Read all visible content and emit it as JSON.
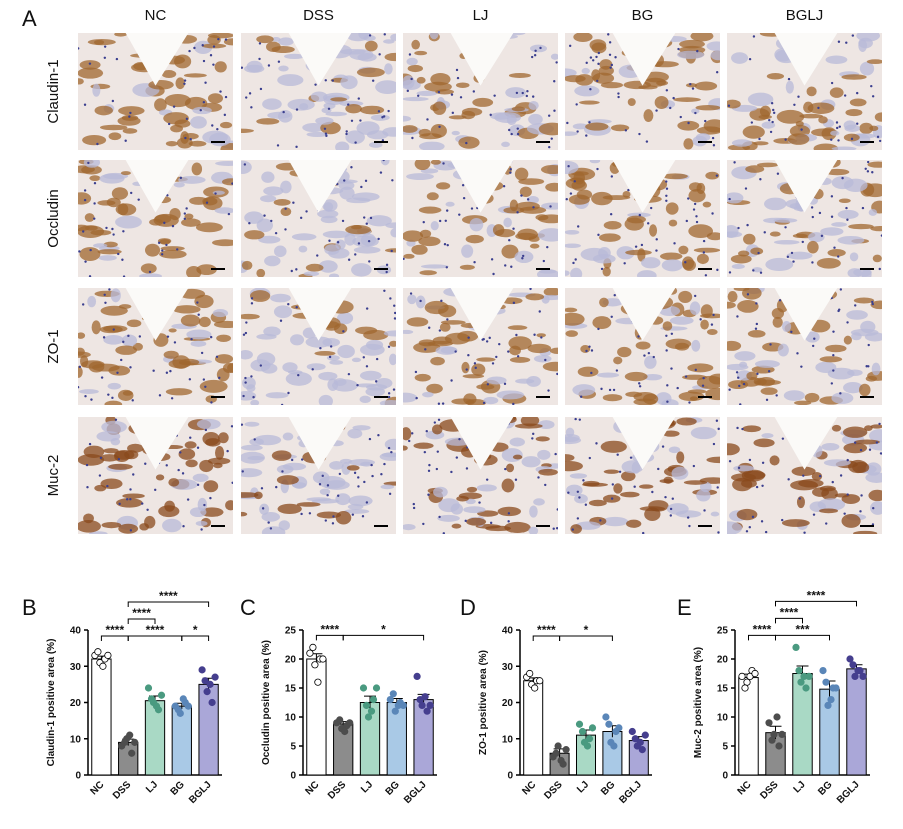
{
  "panel_a": {
    "label": "A",
    "columns": [
      "NC",
      "DSS",
      "LJ",
      "BG",
      "BGLJ"
    ],
    "rows": [
      "Claudin-1",
      "Occludin",
      "ZO-1",
      "Muc-2"
    ]
  },
  "chart_data": [
    {
      "type": "bar",
      "label": "B",
      "ylabel": "Claudin-1 positive area (%)",
      "categories": [
        "NC",
        "DSS",
        "LJ",
        "BG",
        "BGLJ"
      ],
      "values": [
        32,
        9,
        20.5,
        19,
        25
      ],
      "errors": [
        0.8,
        0.9,
        1.3,
        0.8,
        1.7
      ],
      "points": [
        [
          33,
          31,
          32,
          34,
          30,
          33
        ],
        [
          8,
          10,
          6,
          9,
          11,
          9
        ],
        [
          24,
          20,
          18,
          21,
          19,
          22
        ],
        [
          19,
          17,
          20,
          18,
          21,
          19
        ],
        [
          29,
          23,
          20,
          26,
          25,
          27
        ]
      ],
      "colors": [
        "#ffffff",
        "#8c8c8c",
        "#a9d9c5",
        "#a9c9e6",
        "#aaa7d8"
      ],
      "point_colors": [
        "#ffffff",
        "#4d4d4d",
        "#4a9a80",
        "#5a86b8",
        "#453e8e"
      ],
      "ylim": [
        0,
        40
      ],
      "yticks": [
        0,
        10,
        20,
        30,
        40
      ],
      "annotations": [
        {
          "text": "****",
          "from": 0,
          "to": 1
        },
        {
          "text": "****",
          "from": 1,
          "to": 3
        },
        {
          "text": "*",
          "from": 3,
          "to": 4
        },
        {
          "text": "****",
          "from": 1,
          "to": 2
        },
        {
          "text": "****",
          "from": 1,
          "to": 4
        }
      ]
    },
    {
      "type": "bar",
      "label": "C",
      "ylabel": "Occludin positive area (%)",
      "categories": [
        "NC",
        "DSS",
        "LJ",
        "BG",
        "BGLJ"
      ],
      "values": [
        20,
        8.8,
        12.5,
        12.5,
        13
      ],
      "errors": [
        0.9,
        0.4,
        1.1,
        0.7,
        0.9
      ],
      "points": [
        [
          21,
          19,
          20,
          22,
          16,
          20
        ],
        [
          9,
          8,
          8.5,
          9.5,
          7.5,
          9
        ],
        [
          15,
          10,
          13,
          12,
          11,
          15
        ],
        [
          13,
          11,
          12.5,
          14,
          12,
          12
        ],
        [
          17,
          12,
          11,
          13,
          13.5,
          12
        ]
      ],
      "colors": [
        "#ffffff",
        "#8c8c8c",
        "#a9d9c5",
        "#a9c9e6",
        "#aaa7d8"
      ],
      "point_colors": [
        "#ffffff",
        "#4d4d4d",
        "#4a9a80",
        "#5a86b8",
        "#453e8e"
      ],
      "ylim": [
        0,
        25
      ],
      "yticks": [
        0,
        5,
        10,
        15,
        20,
        25
      ],
      "annotations": [
        {
          "text": "****",
          "from": 0,
          "to": 1
        },
        {
          "text": "*",
          "from": 1,
          "to": 4
        }
      ]
    },
    {
      "type": "bar",
      "label": "D",
      "ylabel": "ZO-1 positive area (%)",
      "categories": [
        "NC",
        "DSS",
        "LJ",
        "BG",
        "BGLJ"
      ],
      "values": [
        26,
        6,
        11,
        12,
        9.5
      ],
      "errors": [
        0.8,
        1.2,
        1.4,
        1.6,
        1.1
      ],
      "points": [
        [
          27,
          25,
          26,
          28,
          24,
          26
        ],
        [
          5,
          8,
          3,
          6,
          4,
          7
        ],
        [
          14,
          9,
          10,
          12,
          8,
          13
        ],
        [
          16,
          9,
          12,
          14,
          8,
          13
        ],
        [
          12,
          8,
          7,
          10,
          9,
          11
        ]
      ],
      "colors": [
        "#ffffff",
        "#8c8c8c",
        "#a9d9c5",
        "#a9c9e6",
        "#aaa7d8"
      ],
      "point_colors": [
        "#ffffff",
        "#4d4d4d",
        "#4a9a80",
        "#5a86b8",
        "#453e8e"
      ],
      "ylim": [
        0,
        40
      ],
      "yticks": [
        0,
        10,
        20,
        30,
        40
      ],
      "annotations": [
        {
          "text": "****",
          "from": 0,
          "to": 1
        },
        {
          "text": "*",
          "from": 1,
          "to": 3
        }
      ]
    },
    {
      "type": "bar",
      "label": "E",
      "ylabel": "Muc-2 positive area (%)",
      "categories": [
        "NC",
        "DSS",
        "LJ",
        "BG",
        "BGLJ"
      ],
      "values": [
        16.8,
        7.3,
        17.5,
        14.8,
        18.3
      ],
      "errors": [
        0.6,
        1.1,
        1.3,
        1.4,
        0.7
      ],
      "points": [
        [
          17,
          16,
          18,
          15,
          17,
          17.5
        ],
        [
          9,
          7,
          5,
          6,
          10,
          7
        ],
        [
          22,
          16,
          15,
          18,
          17,
          17
        ],
        [
          18,
          12,
          15,
          16,
          13,
          15
        ],
        [
          20,
          17,
          18,
          19,
          18,
          17
        ]
      ],
      "colors": [
        "#ffffff",
        "#8c8c8c",
        "#a9d9c5",
        "#a9c9e6",
        "#aaa7d8"
      ],
      "point_colors": [
        "#ffffff",
        "#4d4d4d",
        "#4a9a80",
        "#5a86b8",
        "#453e8e"
      ],
      "ylim": [
        0,
        25
      ],
      "yticks": [
        0,
        5,
        10,
        15,
        20,
        25
      ],
      "annotations": [
        {
          "text": "****",
          "from": 0,
          "to": 1
        },
        {
          "text": "***",
          "from": 1,
          "to": 3
        },
        {
          "text": "****",
          "from": 1,
          "to": 2
        },
        {
          "text": "****",
          "from": 1,
          "to": 4
        }
      ]
    }
  ]
}
